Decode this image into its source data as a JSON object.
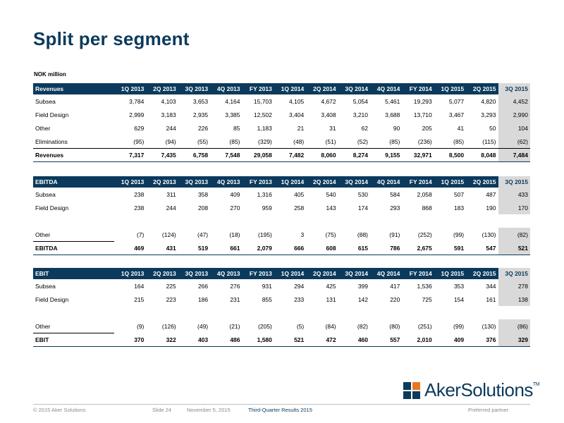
{
  "title": "Split per segment",
  "unit": "NOK million",
  "periods": [
    "1Q 2013",
    "2Q 2013",
    "3Q 2013",
    "4Q 2013",
    "FY 2013",
    "1Q 2014",
    "2Q 2014",
    "3Q 2014",
    "4Q 2014",
    "FY 2014",
    "1Q 2015",
    "2Q 2015",
    "3Q 2015"
  ],
  "tables": [
    {
      "header": "Revenues",
      "rows": [
        {
          "label": "Subsea",
          "values": [
            "3,784",
            "4,103",
            "3,653",
            "4,164",
            "15,703",
            "4,105",
            "4,672",
            "5,054",
            "5,461",
            "19,293",
            "5,077",
            "4,820",
            "4,452"
          ]
        },
        {
          "label": "Field Design",
          "values": [
            "2,999",
            "3,183",
            "2,935",
            "3,385",
            "12,502",
            "3,404",
            "3,408",
            "3,210",
            "3,688",
            "13,710",
            "3,467",
            "3,293",
            "2,990"
          ]
        },
        {
          "label": "Other",
          "values": [
            "629",
            "244",
            "226",
            "85",
            "1,183",
            "21",
            "31",
            "62",
            "90",
            "205",
            "41",
            "50",
            "104"
          ]
        },
        {
          "label": "Eliminations",
          "values": [
            "(95)",
            "(94)",
            "(55)",
            "(85)",
            "(329)",
            "(48)",
            "(51)",
            "(52)",
            "(85)",
            "(236)",
            "(85)",
            "(115)",
            "(62)"
          ]
        }
      ],
      "total": {
        "label": "Revenues",
        "values": [
          "7,317",
          "7,435",
          "6,758",
          "7,548",
          "29,058",
          "7,482",
          "8,060",
          "8,274",
          "9,155",
          "32,971",
          "8,500",
          "8,048",
          "7,484"
        ]
      }
    },
    {
      "header": "EBITDA",
      "rows": [
        {
          "label": "Subsea",
          "values": [
            "238",
            "311",
            "358",
            "409",
            "1,316",
            "405",
            "540",
            "530",
            "584",
            "2,058",
            "507",
            "487",
            "433"
          ]
        },
        {
          "label": "Field Design",
          "values": [
            "238",
            "244",
            "208",
            "270",
            "959",
            "258",
            "143",
            "174",
            "293",
            "868",
            "183",
            "190",
            "170"
          ]
        },
        {
          "label": "Other",
          "values": [
            "(7)",
            "(124)",
            "(47)",
            "(18)",
            "(195)",
            "3",
            "(75)",
            "(88)",
            "(91)",
            "(252)",
            "(99)",
            "(130)",
            "(82)"
          ]
        }
      ],
      "total": {
        "label": "EBITDA",
        "values": [
          "469",
          "431",
          "519",
          "661",
          "2,079",
          "666",
          "608",
          "615",
          "786",
          "2,675",
          "591",
          "547",
          "521"
        ]
      }
    },
    {
      "header": "EBIT",
      "rows": [
        {
          "label": "Subsea",
          "values": [
            "164",
            "225",
            "266",
            "276",
            "931",
            "294",
            "425",
            "399",
            "417",
            "1,536",
            "353",
            "344",
            "278"
          ]
        },
        {
          "label": "Field Design",
          "values": [
            "215",
            "223",
            "186",
            "231",
            "855",
            "233",
            "131",
            "142",
            "220",
            "725",
            "154",
            "161",
            "138"
          ]
        },
        {
          "label": "Other",
          "values": [
            "(9)",
            "(126)",
            "(49)",
            "(21)",
            "(205)",
            "(5)",
            "(84)",
            "(82)",
            "(80)",
            "(251)",
            "(99)",
            "(130)",
            "(86)"
          ]
        }
      ],
      "total": {
        "label": "EBIT",
        "values": [
          "370",
          "322",
          "403",
          "486",
          "1,580",
          "521",
          "472",
          "460",
          "557",
          "2,010",
          "409",
          "376",
          "329"
        ]
      }
    }
  ],
  "footer": {
    "copyright": "© 2015 Aker Solutions",
    "slide": "Slide 24",
    "date": "November 5, 2015",
    "deck": "Third-Quarter Results 2015",
    "tagline": "Preferred partner"
  },
  "logo": {
    "text": "AkerSolutions",
    "tm": "TM"
  },
  "colors": {
    "brand": "#0b3a5c",
    "highlight": "#d9d9d9",
    "logo_accent": "#e87722"
  }
}
